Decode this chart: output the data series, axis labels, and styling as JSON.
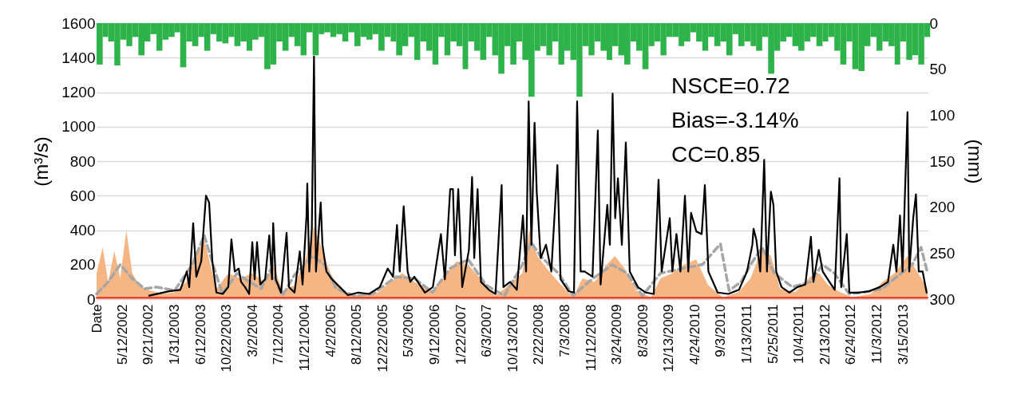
{
  "chart_data": {
    "type": "line",
    "ylabel": "(m³/s)",
    "y2label": "(mm)",
    "xlim": [
      "2002-01-01",
      "2013-07-18"
    ],
    "xticks": [
      {
        "value": "2002-01-01",
        "label": "Date"
      },
      {
        "value": "2002-05-12",
        "label": "5/12/2002"
      },
      {
        "value": "2002-09-21",
        "label": "9/21/2002"
      },
      {
        "value": "2003-01-31",
        "label": "1/31/2003"
      },
      {
        "value": "2003-06-12",
        "label": "6/12/2003"
      },
      {
        "value": "2003-10-22",
        "label": "10/22/2003"
      },
      {
        "value": "2004-03-02",
        "label": "3/2/2004"
      },
      {
        "value": "2004-07-12",
        "label": "7/12/2004"
      },
      {
        "value": "2004-11-21",
        "label": "11/21/2004"
      },
      {
        "value": "2005-04-02",
        "label": "4/2/2005"
      },
      {
        "value": "2005-08-12",
        "label": "8/12/2005"
      },
      {
        "value": "2005-12-22",
        "label": "12/22/2005"
      },
      {
        "value": "2006-05-03",
        "label": "5/3/2006"
      },
      {
        "value": "2006-09-12",
        "label": "9/12/2006"
      },
      {
        "value": "2007-01-22",
        "label": "1/22/2007"
      },
      {
        "value": "2007-06-03",
        "label": "6/3/2007"
      },
      {
        "value": "2007-10-13",
        "label": "10/13/2007"
      },
      {
        "value": "2008-02-22",
        "label": "2/22/2008"
      },
      {
        "value": "2008-07-03",
        "label": "7/3/2008"
      },
      {
        "value": "2008-11-12",
        "label": "11/12/2008"
      },
      {
        "value": "2009-03-24",
        "label": "3/24/2009"
      },
      {
        "value": "2009-08-03",
        "label": "8/3/2009"
      },
      {
        "value": "2009-12-13",
        "label": "12/13/2009"
      },
      {
        "value": "2010-04-24",
        "label": "4/24/2010"
      },
      {
        "value": "2010-09-03",
        "label": "9/3/2010"
      },
      {
        "value": "2011-01-13",
        "label": "1/13/2011"
      },
      {
        "value": "2011-05-25",
        "label": "5/25/2011"
      },
      {
        "value": "2011-10-04",
        "label": "10/4/2011"
      },
      {
        "value": "2012-02-13",
        "label": "2/13/2012"
      },
      {
        "value": "2012-06-24",
        "label": "6/24/2012"
      },
      {
        "value": "2012-11-03",
        "label": "11/3/2012"
      },
      {
        "value": "2013-03-15",
        "label": "3/15/2013"
      }
    ],
    "ylim": [
      0,
      1600
    ],
    "yticks": [
      0,
      200,
      400,
      600,
      800,
      1000,
      1200,
      1400,
      1600
    ],
    "y2lim": [
      300,
      0
    ],
    "y2ticks": [
      0,
      50,
      100,
      150,
      200,
      250,
      300
    ],
    "grid": "y",
    "annotations": [
      "NSCE=0.72",
      "Bias=-3.14%",
      "CC=0.85"
    ],
    "series": [
      {
        "type": "bar",
        "axis": "y2",
        "color": "#2db34a",
        "x": [
          "2002-01",
          "2002-02",
          "2002-03",
          "2002-04",
          "2002-05",
          "2002-06",
          "2002-07",
          "2002-08",
          "2002-09",
          "2002-10",
          "2002-11",
          "2002-12",
          "2003-01",
          "2003-02",
          "2003-03",
          "2003-04",
          "2003-05",
          "2003-06",
          "2003-07",
          "2003-08",
          "2003-09",
          "2003-10",
          "2003-11",
          "2003-12",
          "2004-01",
          "2004-02",
          "2004-03",
          "2004-04",
          "2004-05",
          "2004-06",
          "2004-07",
          "2004-08",
          "2004-09",
          "2004-10",
          "2004-11",
          "2004-12",
          "2005-01",
          "2005-02",
          "2005-03",
          "2005-04",
          "2005-05",
          "2005-06",
          "2005-07",
          "2005-08",
          "2005-09",
          "2005-10",
          "2005-11",
          "2005-12",
          "2006-01",
          "2006-02",
          "2006-03",
          "2006-04",
          "2006-05",
          "2006-06",
          "2006-07",
          "2006-08",
          "2006-09",
          "2006-10",
          "2006-11",
          "2006-12",
          "2007-01",
          "2007-02",
          "2007-03",
          "2007-04",
          "2007-05",
          "2007-06",
          "2007-07",
          "2007-08",
          "2007-09",
          "2007-10",
          "2007-11",
          "2007-12",
          "2008-01",
          "2008-02",
          "2008-03",
          "2008-04",
          "2008-05",
          "2008-06",
          "2008-07",
          "2008-08",
          "2008-09",
          "2008-10",
          "2008-11",
          "2008-12",
          "2009-01",
          "2009-02",
          "2009-03",
          "2009-04",
          "2009-05",
          "2009-06",
          "2009-07",
          "2009-08",
          "2009-09",
          "2009-10",
          "2009-11",
          "2009-12",
          "2010-01",
          "2010-02",
          "2010-03",
          "2010-04",
          "2010-05",
          "2010-06",
          "2010-07",
          "2010-08",
          "2010-09",
          "2010-10",
          "2010-11",
          "2010-12",
          "2011-01",
          "2011-02",
          "2011-03",
          "2011-04",
          "2011-05",
          "2011-06",
          "2011-07",
          "2011-08",
          "2011-09",
          "2011-10",
          "2011-11",
          "2011-12",
          "2012-01",
          "2012-02",
          "2012-03",
          "2012-04",
          "2012-05",
          "2012-06",
          "2012-07",
          "2012-08",
          "2012-09",
          "2012-10",
          "2012-11",
          "2012-12",
          "2013-01",
          "2013-02",
          "2013-03",
          "2013-04",
          "2013-05",
          "2013-06",
          "2013-07"
        ],
        "values": [
          45,
          15,
          20,
          46,
          18,
          25,
          15,
          35,
          20,
          12,
          30,
          18,
          15,
          10,
          48,
          20,
          25,
          15,
          30,
          12,
          20,
          22,
          15,
          25,
          20,
          30,
          18,
          15,
          50,
          45,
          20,
          30,
          15,
          25,
          35,
          10,
          35,
          12,
          10,
          15,
          12,
          20,
          10,
          25,
          15,
          18,
          12,
          30,
          15,
          20,
          35,
          25,
          15,
          40,
          20,
          30,
          45,
          15,
          35,
          20,
          25,
          50,
          20,
          30,
          40,
          15,
          35,
          55,
          25,
          45,
          20,
          40,
          80,
          30,
          25,
          35,
          20,
          45,
          30,
          40,
          80,
          25,
          35,
          20,
          30,
          40,
          25,
          35,
          45,
          20,
          30,
          50,
          25,
          20,
          35,
          15,
          15,
          25,
          20,
          10,
          20,
          30,
          15,
          25,
          20,
          35,
          12,
          25,
          20,
          25,
          30,
          15,
          55,
          30,
          20,
          15,
          25,
          30,
          20,
          15,
          25,
          20,
          15,
          30,
          45,
          20,
          50,
          52,
          25,
          15,
          30,
          20,
          25,
          45,
          20,
          40,
          35,
          45,
          15
        ]
      },
      {
        "type": "area",
        "color": "#f5b684",
        "x": [
          "2002-01-01",
          "2002-02-01",
          "2002-03-01",
          "2002-04-01",
          "2002-05-01",
          "2002-06-01",
          "2002-07-01",
          "2002-08-01",
          "2002-09-01",
          "2002-10-01",
          "2002-11-01",
          "2002-12-01",
          "2003-02-01",
          "2003-04-01",
          "2003-05-15",
          "2003-07-01",
          "2003-08-01",
          "2003-09-01",
          "2003-11-01",
          "2004-01-01",
          "2004-03-01",
          "2004-05-01",
          "2004-06-15",
          "2004-08-01",
          "2004-10-01",
          "2004-12-01",
          "2005-01-08",
          "2005-02-15",
          "2005-04-01",
          "2005-06-01",
          "2005-09-01",
          "2005-12-01",
          "2006-02-01",
          "2006-04-01",
          "2006-06-01",
          "2006-09-01",
          "2006-11-15",
          "2007-01-01",
          "2007-03-01",
          "2007-05-01",
          "2007-07-15",
          "2007-09-01",
          "2007-12-01",
          "2008-01-05",
          "2008-02-15",
          "2008-04-01",
          "2008-06-01",
          "2008-08-15",
          "2008-10-01",
          "2008-12-01",
          "2009-02-01",
          "2009-03-15",
          "2009-05-01",
          "2009-07-01",
          "2009-09-15",
          "2009-11-01",
          "2010-01-01",
          "2010-03-01",
          "2010-05-01",
          "2010-07-01",
          "2010-09-15",
          "2010-12-01",
          "2011-02-01",
          "2011-04-01",
          "2011-05-15",
          "2011-07-01",
          "2011-09-15",
          "2011-12-01",
          "2012-01-15",
          "2012-03-01",
          "2012-05-01",
          "2012-07-01",
          "2012-10-01",
          "2012-12-01",
          "2013-02-01",
          "2013-04-07",
          "2013-05-15",
          "2013-07-18"
        ],
        "values": [
          150,
          300,
          100,
          280,
          120,
          400,
          150,
          90,
          60,
          50,
          40,
          30,
          40,
          100,
          250,
          350,
          200,
          60,
          150,
          120,
          150,
          100,
          200,
          50,
          80,
          250,
          420,
          300,
          150,
          40,
          20,
          40,
          100,
          150,
          100,
          50,
          150,
          220,
          200,
          120,
          20,
          60,
          150,
          400,
          250,
          180,
          100,
          10,
          120,
          100,
          200,
          250,
          180,
          50,
          10,
          120,
          150,
          200,
          230,
          80,
          10,
          40,
          120,
          300,
          250,
          60,
          40,
          130,
          150,
          80,
          40,
          10,
          30,
          100,
          150,
          250,
          180,
          60
        ]
      },
      {
        "type": "line",
        "line_style": "dashed",
        "color": "#a6a6a6",
        "x": [
          "2002-01-01",
          "2002-03-01",
          "2002-05-01",
          "2002-07-01",
          "2002-09-01",
          "2002-11-01",
          "2003-02-01",
          "2003-05-01",
          "2003-07-01",
          "2003-08-15",
          "2003-10-01",
          "2003-12-15",
          "2004-02-01",
          "2004-04-15",
          "2004-06-01",
          "2004-08-01",
          "2004-10-01",
          "2005-01-01",
          "2005-03-01",
          "2005-05-01",
          "2005-08-01",
          "2005-11-01",
          "2006-03-01",
          "2006-06-01",
          "2006-09-01",
          "2006-12-01",
          "2007-03-01",
          "2007-06-01",
          "2007-09-01",
          "2007-12-01",
          "2008-01-15",
          "2008-03-01",
          "2008-06-01",
          "2008-08-15",
          "2008-11-01",
          "2009-03-01",
          "2009-05-15",
          "2009-08-01",
          "2009-11-01",
          "2010-03-01",
          "2010-06-01",
          "2010-09-01",
          "2010-10-15",
          "2010-12-15",
          "2011-02-01",
          "2011-04-01",
          "2011-06-01",
          "2011-09-01",
          "2011-12-01",
          "2012-02-01",
          "2012-04-01",
          "2012-06-15",
          "2012-09-01",
          "2012-12-01",
          "2013-02-01",
          "2013-05-01",
          "2013-06-15",
          "2013-07-18"
        ],
        "values": [
          30,
          100,
          200,
          120,
          60,
          70,
          50,
          200,
          370,
          200,
          30,
          150,
          110,
          60,
          170,
          20,
          140,
          250,
          200,
          60,
          20,
          30,
          130,
          120,
          40,
          180,
          230,
          80,
          20,
          200,
          330,
          250,
          150,
          20,
          100,
          200,
          150,
          20,
          150,
          180,
          200,
          320,
          50,
          100,
          200,
          300,
          150,
          70,
          100,
          200,
          150,
          30,
          40,
          60,
          120,
          200,
          300,
          150
        ]
      },
      {
        "type": "line",
        "color": "#e8302a",
        "x": [
          "2002-01-01",
          "2005-01-01",
          "2008-01-01",
          "2011-01-01",
          "2013-07-18"
        ],
        "values": [
          8,
          8,
          8,
          8,
          8
        ]
      },
      {
        "color": "#000000",
        "x": [
          "2002-09-25",
          "2003-01-04",
          "2003-03-02",
          "2003-04-04",
          "2003-04-16",
          "2003-05-06",
          "2003-05-22",
          "2003-06-16",
          "2003-07-10",
          "2003-07-26",
          "2003-08-11",
          "2003-09-01",
          "2003-10-03",
          "2003-10-31",
          "2003-11-16",
          "2003-12-03",
          "2003-12-23",
          "2004-01-04",
          "2004-01-24",
          "2004-02-14",
          "2004-03-01",
          "2004-03-13",
          "2004-03-25",
          "2004-04-10",
          "2004-05-05",
          "2004-05-26",
          "2004-06-09",
          "2004-06-15",
          "2004-06-28",
          "2004-07-25",
          "2004-08-22",
          "2004-09-03",
          "2004-10-01",
          "2004-10-28",
          "2004-11-11",
          "2004-12-01",
          "2004-12-05",
          "2004-12-15",
          "2004-12-28",
          "2005-01-08",
          "2005-01-18",
          "2005-02-11",
          "2005-02-20",
          "2005-03-12",
          "2005-04-09",
          "2005-05-19",
          "2005-06-29",
          "2005-08-21",
          "2005-10-14",
          "2005-12-08",
          "2006-01-17",
          "2006-02-13",
          "2006-03-05",
          "2006-03-19",
          "2006-04-08",
          "2006-04-28",
          "2006-05-12",
          "2006-06-01",
          "2006-07-25",
          "2006-09-03",
          "2006-10-14",
          "2006-11-03",
          "2006-11-30",
          "2006-12-14",
          "2006-12-24",
          "2007-01-10",
          "2007-01-30",
          "2007-03-05",
          "2007-03-21",
          "2007-04-01",
          "2007-04-18",
          "2007-05-05",
          "2007-06-14",
          "2007-07-18",
          "2007-08-18",
          "2007-08-27",
          "2007-09-30",
          "2007-11-03",
          "2007-12-04",
          "2007-12-20",
          "2008-01-02",
          "2008-01-16",
          "2008-02-01",
          "2008-02-12",
          "2008-03-03",
          "2008-03-30",
          "2008-04-26",
          "2008-05-27",
          "2008-06-12",
          "2008-07-23",
          "2008-08-19",
          "2008-09-04",
          "2008-09-22",
          "2008-10-12",
          "2008-11-21",
          "2008-12-18",
          "2009-01-01",
          "2009-02-04",
          "2009-02-17",
          "2009-03-03",
          "2009-03-16",
          "2009-03-30",
          "2009-04-19",
          "2009-05-09",
          "2009-05-29",
          "2009-07-09",
          "2009-08-18",
          "2009-09-28",
          "2009-10-22",
          "2009-11-07",
          "2009-12-18",
          "2009-12-31",
          "2010-01-21",
          "2010-02-10",
          "2010-03-05",
          "2010-03-22",
          "2010-04-05",
          "2010-05-02",
          "2010-05-29",
          "2010-06-14",
          "2010-07-02",
          "2010-08-18",
          "2010-10-11",
          "2010-12-04",
          "2011-01-14",
          "2011-02-10",
          "2011-02-16",
          "2011-03-02",
          "2011-03-22",
          "2011-04-11",
          "2011-04-25",
          "2011-05-15",
          "2011-05-28",
          "2011-06-11",
          "2011-07-08",
          "2011-08-17",
          "2011-09-27",
          "2011-11-06",
          "2011-12-04",
          "2011-12-17",
          "2012-01-13",
          "2012-02-02",
          "2012-03-07",
          "2012-04-03",
          "2012-04-27",
          "2012-05-06",
          "2012-06-03",
          "2012-06-16",
          "2012-08-02",
          "2012-09-25",
          "2012-11-18",
          "2012-12-29",
          "2013-01-25",
          "2013-02-10",
          "2013-02-28",
          "2013-03-13",
          "2013-04-07",
          "2013-04-16",
          "2013-05-06",
          "2013-05-20",
          "2013-06-03",
          "2013-06-23",
          "2013-07-13"
        ],
        "values": [
          20,
          46,
          54,
          160,
          70,
          440,
          130,
          220,
          600,
          560,
          220,
          38,
          30,
          70,
          346,
          160,
          177,
          100,
          70,
          30,
          330,
          115,
          330,
          85,
          115,
          370,
          115,
          440,
          115,
          38,
          385,
          70,
          38,
          277,
          85,
          485,
          670,
          160,
          408,
          1407,
          160,
          560,
          315,
          160,
          115,
          70,
          23,
          38,
          30,
          70,
          177,
          130,
          430,
          160,
          538,
          160,
          100,
          130,
          38,
          70,
          377,
          115,
          638,
          638,
          254,
          638,
          70,
          285,
          708,
          238,
          638,
          100,
          54,
          30,
          661,
          70,
          100,
          54,
          485,
          160,
          1146,
          315,
          1023,
          623,
          238,
          315,
          160,
          777,
          115,
          46,
          38,
          1146,
          160,
          160,
          130,
          977,
          85,
          546,
          315,
          1192,
          469,
          700,
          315,
          908,
          160,
          70,
          38,
          30,
          692,
          160,
          469,
          160,
          377,
          160,
          600,
          160,
          500,
          392,
          377,
          661,
          160,
          38,
          30,
          54,
          160,
          315,
          408,
          346,
          160,
          808,
          160,
          623,
          546,
          160,
          70,
          38,
          70,
          85,
          361,
          100,
          285,
          160,
          100,
          54,
          700,
          70,
          377,
          38,
          38,
          46,
          70,
          100,
          315,
          160,
          485,
          160,
          1084,
          160,
          469,
          608,
          160,
          160,
          38
        ]
      }
    ]
  }
}
